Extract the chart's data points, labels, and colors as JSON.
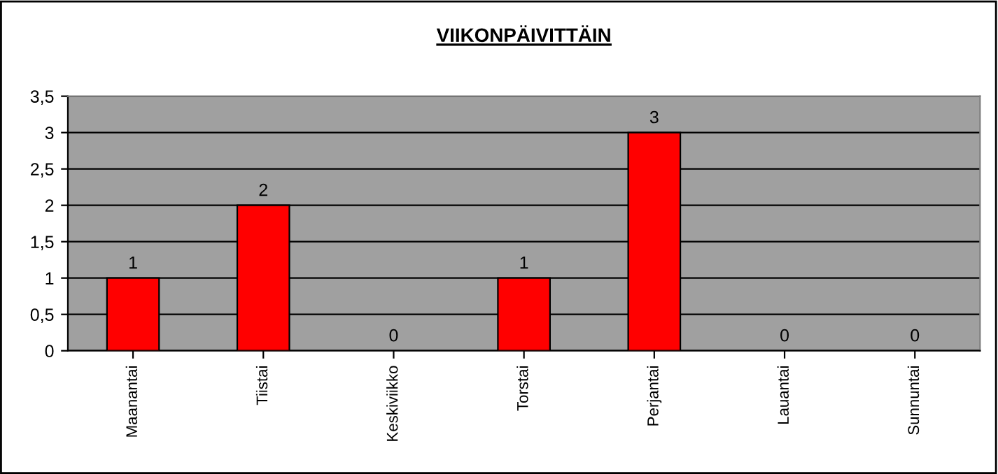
{
  "chart_data": {
    "type": "bar",
    "title": "VIIKONPÄIVITTÄIN",
    "categories": [
      "Maanantai",
      "Tiistai",
      "Keskiviikko",
      "Torstai",
      "Perjantai",
      "Lauantai",
      "Sunnuntai"
    ],
    "values": [
      1,
      2,
      0,
      1,
      3,
      0,
      0
    ],
    "color": "#ff0000",
    "ylim": [
      0,
      3.5
    ],
    "yticks": [
      0,
      {
        "value": 0.5,
        "label": "0,5"
      },
      1,
      {
        "value": 1.5,
        "label": "1,5"
      },
      2,
      {
        "value": 2.5,
        "label": "2,5"
      },
      3,
      {
        "value": 3.5,
        "label": "3,5"
      }
    ],
    "grid": "y",
    "data_labels": true
  }
}
